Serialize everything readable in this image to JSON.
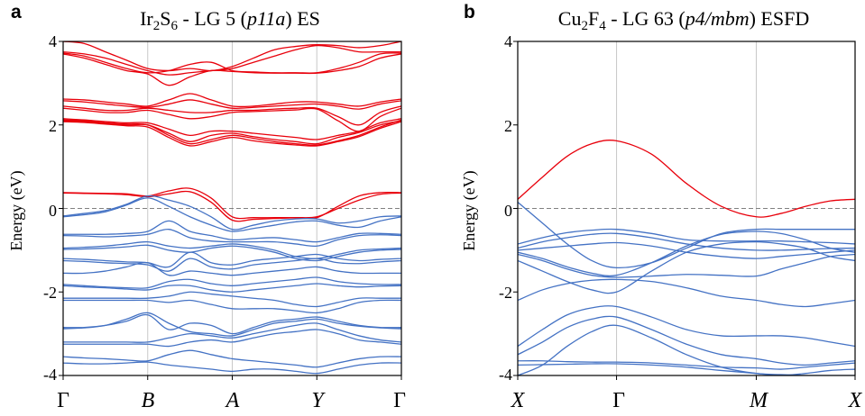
{
  "colors": {
    "occupied": "#4472C4",
    "unoccupied": "#E8000B",
    "fermi_line": "#808080",
    "vline": "#c8c8c8"
  },
  "chart_data": [
    {
      "type": "line",
      "panel_label": "a",
      "title_parts": [
        "Ir",
        "2",
        "S",
        "6",
        " - LG 5 (",
        "p11a",
        ") ES"
      ],
      "ylabel": "Energy (eV)",
      "ylim": [
        -4,
        4
      ],
      "yticks": [
        "-4",
        "-2",
        "0",
        "2",
        "4"
      ],
      "x_range": [
        0,
        4
      ],
      "kpoints": [
        {
          "x": 0,
          "label": "Γ",
          "italic": false
        },
        {
          "x": 1,
          "label": "B",
          "italic": true
        },
        {
          "x": 2,
          "label": "A",
          "italic": true
        },
        {
          "x": 3,
          "label": "Y",
          "italic": true
        },
        {
          "x": 4,
          "label": "Γ",
          "italic": false
        }
      ],
      "x": [
        0,
        0.25,
        0.5,
        0.75,
        1,
        1.25,
        1.5,
        1.75,
        2,
        2.25,
        2.5,
        2.75,
        3,
        3.25,
        3.5,
        3.75,
        4
      ],
      "series": [
        {
          "band": "unoccupied",
          "values": [
            4.0,
            3.95,
            3.75,
            3.55,
            3.35,
            3.3,
            3.35,
            3.3,
            3.4,
            3.6,
            3.8,
            3.88,
            3.92,
            3.9,
            3.85,
            3.9,
            4.0
          ]
        },
        {
          "band": "unoccupied",
          "values": [
            3.75,
            3.7,
            3.6,
            3.45,
            3.3,
            3.2,
            3.25,
            3.3,
            3.35,
            3.5,
            3.65,
            3.8,
            3.9,
            3.85,
            3.75,
            3.75,
            3.75
          ]
        },
        {
          "band": "unoccupied",
          "values": [
            3.72,
            3.65,
            3.5,
            3.35,
            3.25,
            3.3,
            3.45,
            3.5,
            3.3,
            3.27,
            3.25,
            3.25,
            3.25,
            3.35,
            3.5,
            3.7,
            3.72
          ]
        },
        {
          "band": "unoccupied",
          "values": [
            3.7,
            3.6,
            3.45,
            3.3,
            3.22,
            2.95,
            3.15,
            3.3,
            3.28,
            3.25,
            3.24,
            3.24,
            3.24,
            3.3,
            3.4,
            3.6,
            3.7
          ]
        },
        {
          "band": "unoccupied",
          "values": [
            2.62,
            2.6,
            2.55,
            2.5,
            2.45,
            2.6,
            2.75,
            2.6,
            2.45,
            2.45,
            2.5,
            2.55,
            2.55,
            2.5,
            2.45,
            2.55,
            2.62
          ]
        },
        {
          "band": "unoccupied",
          "values": [
            2.58,
            2.55,
            2.5,
            2.45,
            2.42,
            2.5,
            2.6,
            2.5,
            2.4,
            2.42,
            2.45,
            2.48,
            2.5,
            2.45,
            2.38,
            2.5,
            2.58
          ]
        },
        {
          "band": "unoccupied",
          "values": [
            2.45,
            2.4,
            2.35,
            2.35,
            2.4,
            2.35,
            2.3,
            2.3,
            2.35,
            2.35,
            2.38,
            2.4,
            2.4,
            2.2,
            2.0,
            2.3,
            2.45
          ]
        },
        {
          "band": "unoccupied",
          "values": [
            2.4,
            2.35,
            2.3,
            2.3,
            2.35,
            2.25,
            2.15,
            2.2,
            2.3,
            2.32,
            2.34,
            2.36,
            2.38,
            2.1,
            1.85,
            2.2,
            2.4
          ]
        },
        {
          "band": "unoccupied",
          "values": [
            2.15,
            2.12,
            2.08,
            2.05,
            2.05,
            1.9,
            1.75,
            1.85,
            1.85,
            1.8,
            1.75,
            1.7,
            1.65,
            1.75,
            1.85,
            2.05,
            2.15
          ]
        },
        {
          "band": "unoccupied",
          "values": [
            2.1,
            2.08,
            2.04,
            2.0,
            2.0,
            1.8,
            1.6,
            1.75,
            1.8,
            1.72,
            1.65,
            1.6,
            1.55,
            1.7,
            1.82,
            2.0,
            2.1
          ]
        },
        {
          "band": "unoccupied",
          "values": [
            2.12,
            2.1,
            2.05,
            2.02,
            2.0,
            1.75,
            1.55,
            1.65,
            1.75,
            1.68,
            1.6,
            1.55,
            1.52,
            1.62,
            1.75,
            1.95,
            2.12
          ]
        },
        {
          "band": "unoccupied",
          "values": [
            2.08,
            2.06,
            2.02,
            1.98,
            1.95,
            1.7,
            1.5,
            1.6,
            1.7,
            1.62,
            1.56,
            1.52,
            1.5,
            1.6,
            1.72,
            1.92,
            2.08
          ]
        },
        {
          "band": "unoccupied",
          "values": [
            0.38,
            0.37,
            0.36,
            0.35,
            0.3,
            0.42,
            0.48,
            0.25,
            -0.2,
            -0.22,
            -0.22,
            -0.22,
            -0.22,
            0.05,
            0.3,
            0.38,
            0.38
          ]
        },
        {
          "band": "unoccupied",
          "values": [
            0.37,
            0.36,
            0.35,
            0.33,
            0.28,
            0.35,
            0.4,
            0.15,
            -0.28,
            -0.26,
            -0.24,
            -0.22,
            -0.2,
            0.0,
            0.2,
            0.34,
            0.37
          ]
        },
        {
          "band": "occupied",
          "values": [
            -0.18,
            -0.12,
            -0.05,
            0.1,
            0.3,
            0.2,
            0.05,
            -0.2,
            -0.5,
            -0.4,
            -0.3,
            -0.25,
            -0.25,
            -0.35,
            -0.3,
            -0.2,
            -0.18
          ]
        },
        {
          "band": "occupied",
          "values": [
            -0.2,
            -0.15,
            -0.08,
            0.08,
            0.25,
            0.05,
            -0.2,
            -0.4,
            -0.55,
            -0.48,
            -0.4,
            -0.32,
            -0.3,
            -0.4,
            -0.45,
            -0.3,
            -0.2
          ]
        },
        {
          "band": "occupied",
          "values": [
            -0.62,
            -0.62,
            -0.62,
            -0.6,
            -0.55,
            -0.3,
            -0.55,
            -0.65,
            -0.75,
            -0.72,
            -0.7,
            -0.75,
            -0.8,
            -0.7,
            -0.6,
            -0.6,
            -0.62
          ]
        },
        {
          "band": "occupied",
          "values": [
            -0.65,
            -0.66,
            -0.68,
            -0.66,
            -0.62,
            -0.5,
            -0.7,
            -0.78,
            -0.8,
            -0.8,
            -0.8,
            -0.85,
            -0.9,
            -0.75,
            -0.65,
            -0.63,
            -0.65
          ]
        },
        {
          "band": "occupied",
          "values": [
            -0.95,
            -0.93,
            -0.9,
            -0.85,
            -0.8,
            -0.9,
            -0.95,
            -0.9,
            -0.85,
            -0.9,
            -1.0,
            -1.15,
            -1.2,
            -1.1,
            -1.0,
            -0.97,
            -0.95
          ]
        },
        {
          "band": "occupied",
          "values": [
            -0.98,
            -0.97,
            -0.95,
            -0.92,
            -0.88,
            -1.0,
            -1.05,
            -0.95,
            -0.9,
            -0.95,
            -1.05,
            -1.2,
            -1.25,
            -1.15,
            -1.05,
            -1.0,
            -0.98
          ]
        },
        {
          "band": "occupied",
          "values": [
            -1.2,
            -1.22,
            -1.25,
            -1.28,
            -1.3,
            -1.4,
            -1.05,
            -1.3,
            -1.35,
            -1.25,
            -1.2,
            -1.15,
            -1.1,
            -1.2,
            -1.25,
            -1.22,
            -1.2
          ]
        },
        {
          "band": "occupied",
          "values": [
            -1.25,
            -1.27,
            -1.3,
            -1.32,
            -1.35,
            -1.5,
            -1.2,
            -1.4,
            -1.45,
            -1.35,
            -1.3,
            -1.25,
            -1.2,
            -1.3,
            -1.32,
            -1.28,
            -1.25
          ]
        },
        {
          "band": "occupied",
          "values": [
            -1.55,
            -1.55,
            -1.5,
            -1.4,
            -1.3,
            -1.6,
            -1.5,
            -1.55,
            -1.6,
            -1.55,
            -1.5,
            -1.45,
            -1.4,
            -1.5,
            -1.55,
            -1.55,
            -1.55
          ]
        },
        {
          "band": "occupied",
          "values": [
            -1.82,
            -1.85,
            -1.88,
            -1.9,
            -1.9,
            -1.75,
            -1.7,
            -1.8,
            -1.85,
            -1.8,
            -1.75,
            -1.7,
            -1.65,
            -1.75,
            -1.8,
            -1.82,
            -1.82
          ]
        },
        {
          "band": "occupied",
          "values": [
            -1.85,
            -1.88,
            -1.9,
            -1.93,
            -1.95,
            -1.85,
            -1.85,
            -1.95,
            -2.0,
            -1.95,
            -1.9,
            -1.85,
            -1.8,
            -1.85,
            -1.88,
            -1.86,
            -1.85
          ]
        },
        {
          "band": "occupied",
          "values": [
            -2.15,
            -2.15,
            -2.15,
            -2.15,
            -2.15,
            -2.1,
            -2.0,
            -2.05,
            -2.1,
            -2.15,
            -2.2,
            -2.3,
            -2.35,
            -2.25,
            -2.15,
            -2.15,
            -2.15
          ]
        },
        {
          "band": "occupied",
          "values": [
            -2.2,
            -2.2,
            -2.2,
            -2.2,
            -2.2,
            -2.25,
            -2.2,
            -2.3,
            -2.4,
            -2.4,
            -2.4,
            -2.45,
            -2.5,
            -2.4,
            -2.25,
            -2.2,
            -2.2
          ]
        },
        {
          "band": "occupied",
          "values": [
            -2.85,
            -2.85,
            -2.8,
            -2.7,
            -2.55,
            -2.9,
            -2.75,
            -2.8,
            -3.0,
            -2.85,
            -2.7,
            -2.65,
            -2.6,
            -2.7,
            -2.8,
            -2.85,
            -2.85
          ]
        },
        {
          "band": "occupied",
          "values": [
            -2.88,
            -2.86,
            -2.8,
            -2.65,
            -2.5,
            -2.75,
            -2.95,
            -3.0,
            -3.05,
            -2.9,
            -2.75,
            -2.7,
            -2.65,
            -2.75,
            -2.82,
            -2.86,
            -2.88
          ]
        },
        {
          "band": "occupied",
          "values": [
            -3.2,
            -3.2,
            -3.2,
            -3.2,
            -3.2,
            -3.1,
            -3.0,
            -3.05,
            -3.1,
            -3.0,
            -2.9,
            -2.8,
            -2.75,
            -2.9,
            -3.05,
            -3.15,
            -3.2
          ]
        },
        {
          "band": "occupied",
          "values": [
            -3.25,
            -3.25,
            -3.25,
            -3.25,
            -3.25,
            -3.3,
            -3.2,
            -3.15,
            -3.2,
            -3.1,
            -3.0,
            -2.95,
            -2.9,
            -3.0,
            -3.15,
            -3.2,
            -3.25
          ]
        },
        {
          "band": "occupied",
          "values": [
            -3.55,
            -3.58,
            -3.6,
            -3.63,
            -3.65,
            -3.5,
            -3.4,
            -3.5,
            -3.6,
            -3.65,
            -3.7,
            -3.75,
            -3.8,
            -3.7,
            -3.6,
            -3.55,
            -3.55
          ]
        },
        {
          "band": "occupied",
          "values": [
            -3.7,
            -3.72,
            -3.72,
            -3.7,
            -3.68,
            -3.75,
            -3.8,
            -3.85,
            -3.9,
            -3.85,
            -3.85,
            -3.9,
            -3.95,
            -3.85,
            -3.75,
            -3.7,
            -3.7
          ]
        }
      ]
    },
    {
      "type": "line",
      "panel_label": "b",
      "title_parts": [
        "Cu",
        "2",
        "F",
        "4",
        " - LG 63 (",
        "p4/mbm",
        ") ESFD"
      ],
      "ylabel": "Energy (eV)",
      "ylim": [
        -4,
        4
      ],
      "yticks": [
        "-4",
        "-2",
        "0",
        "2",
        "4"
      ],
      "x_range": [
        0,
        3.414
      ],
      "kpoints": [
        {
          "x": 0,
          "label": "X",
          "italic": true
        },
        {
          "x": 1,
          "label": "Γ",
          "italic": false
        },
        {
          "x": 2.414,
          "label": "M",
          "italic": true
        },
        {
          "x": 3.414,
          "label": "X",
          "italic": true
        }
      ],
      "x": [
        0,
        0.25,
        0.5,
        0.75,
        1,
        1.354,
        1.707,
        2.061,
        2.414,
        2.664,
        2.914,
        3.164,
        3.414
      ],
      "series": [
        {
          "band": "unoccupied",
          "values": [
            0.22,
            0.75,
            1.25,
            1.55,
            1.62,
            1.3,
            0.6,
            0.05,
            -0.2,
            -0.12,
            0.05,
            0.18,
            0.22
          ]
        },
        {
          "band": "occupied",
          "values": [
            0.15,
            -0.35,
            -0.85,
            -1.25,
            -1.42,
            -1.3,
            -0.95,
            -0.6,
            -0.5,
            -0.5,
            -0.5,
            -0.5,
            -0.5
          ]
        },
        {
          "band": "occupied",
          "values": [
            -0.85,
            -0.7,
            -0.58,
            -0.52,
            -0.5,
            -0.6,
            -0.75,
            -0.78,
            -0.78,
            -0.78,
            -0.8,
            -0.82,
            -0.85
          ]
        },
        {
          "band": "occupied",
          "values": [
            -0.95,
            -0.8,
            -0.7,
            -0.62,
            -0.6,
            -0.7,
            -0.85,
            -0.95,
            -1.0,
            -1.0,
            -0.98,
            -0.96,
            -0.95
          ]
        },
        {
          "band": "occupied",
          "values": [
            -1.0,
            -0.95,
            -0.9,
            -0.85,
            -0.82,
            -0.9,
            -1.05,
            -1.15,
            -1.2,
            -1.15,
            -1.1,
            -1.05,
            -1.0
          ]
        },
        {
          "band": "occupied",
          "values": [
            -1.05,
            -1.2,
            -1.4,
            -1.55,
            -1.6,
            -1.3,
            -0.9,
            -0.62,
            -0.55,
            -0.6,
            -0.75,
            -0.95,
            -1.05
          ]
        },
        {
          "band": "occupied",
          "values": [
            -1.1,
            -1.25,
            -1.45,
            -1.6,
            -1.65,
            -1.62,
            -1.58,
            -1.6,
            -1.62,
            -1.45,
            -1.3,
            -1.15,
            -1.1
          ]
        },
        {
          "band": "occupied",
          "values": [
            -1.25,
            -1.5,
            -1.75,
            -1.95,
            -2.0,
            -1.5,
            -1.05,
            -0.85,
            -0.8,
            -0.85,
            -0.95,
            -1.15,
            -1.25
          ]
        },
        {
          "band": "occupied",
          "values": [
            -2.2,
            -1.95,
            -1.8,
            -1.72,
            -1.7,
            -1.75,
            -1.9,
            -2.1,
            -2.2,
            -2.3,
            -2.35,
            -2.28,
            -2.2
          ]
        },
        {
          "band": "occupied",
          "values": [
            -3.3,
            -2.9,
            -2.55,
            -2.38,
            -2.35,
            -2.6,
            -2.9,
            -3.05,
            -3.05,
            -3.05,
            -3.1,
            -3.2,
            -3.3
          ]
        },
        {
          "band": "occupied",
          "values": [
            -3.5,
            -3.2,
            -2.85,
            -2.65,
            -2.6,
            -2.9,
            -3.25,
            -3.5,
            -3.6,
            -3.7,
            -3.75,
            -3.7,
            -3.65
          ]
        },
        {
          "band": "occupied",
          "values": [
            -3.65,
            -3.65,
            -3.67,
            -3.68,
            -3.68,
            -3.7,
            -3.75,
            -3.8,
            -3.82,
            -3.85,
            -3.8,
            -3.75,
            -3.7
          ]
        },
        {
          "band": "occupied",
          "values": [
            -3.75,
            -3.74,
            -3.73,
            -3.72,
            -3.72,
            -3.75,
            -3.8,
            -3.88,
            -3.95,
            -4.0,
            -3.95,
            -3.88,
            -3.85
          ]
        },
        {
          "band": "occupied",
          "values": [
            -4.0,
            -3.75,
            -3.3,
            -2.95,
            -2.8,
            -3.1,
            -3.5,
            -3.8,
            -3.95,
            -3.98,
            -4.0,
            -4.0,
            -4.0
          ]
        }
      ]
    }
  ]
}
